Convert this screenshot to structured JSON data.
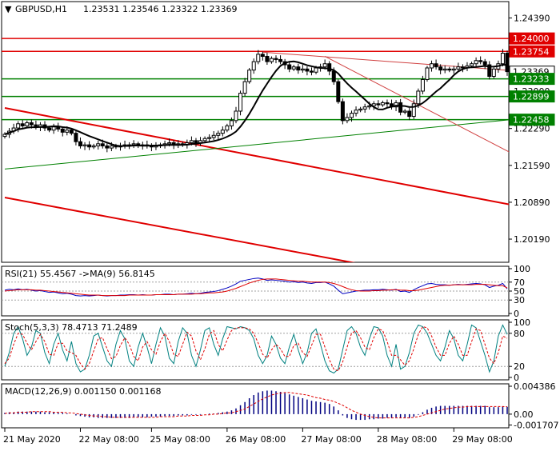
{
  "chart_data": [
    {
      "type": "candlestick",
      "panel": "price",
      "symbol_label": "GBPUSD,H1",
      "ohlc_label": "1.23531 1.23546 1.23322 1.23369",
      "ylim": [
        1.1975,
        1.247
      ],
      "y_ticks": [
        "1.24390",
        "1.23000",
        "1.22290",
        "1.21590",
        "1.20890",
        "1.20190"
      ],
      "levels": [
        {
          "value": 1.24,
          "label": "1.24000",
          "color": "#e00000",
          "style": "resistance"
        },
        {
          "value": 1.23754,
          "label": "1.23754",
          "color": "#e00000",
          "style": "resistance"
        },
        {
          "value": 1.23369,
          "label": "1.23369",
          "color": "#ffffff",
          "style": "current"
        },
        {
          "value": 1.23233,
          "label": "1.23233",
          "color": "#008000",
          "style": "support"
        },
        {
          "value": 1.22899,
          "label": "1.22899",
          "color": "#008000",
          "style": "support"
        },
        {
          "value": 1.22458,
          "label": "1.22458",
          "color": "#008000",
          "style": "support"
        }
      ],
      "trendlines": [
        {
          "x": [
            0.0,
            114.0
          ],
          "y": [
            1.2268,
            1.2084
          ],
          "color": "#e00000",
          "width": 2
        },
        {
          "x": [
            0.0,
            114.0
          ],
          "y": [
            1.2098,
            1.1918
          ],
          "color": "#e00000",
          "width": 2
        },
        {
          "x": [
            0.0,
            114.0
          ],
          "y": [
            1.2152,
            1.2246
          ],
          "color": "#008000",
          "width": 1
        },
        {
          "x": [
            58.0,
            114.0
          ],
          "y": [
            1.2374,
            1.2339
          ],
          "color": "#d04040",
          "width": 1
        },
        {
          "x": [
            72.0,
            114.0
          ],
          "y": [
            1.2366,
            1.2182
          ],
          "color": "#d04040",
          "width": 1
        }
      ],
      "closes": [
        1.2218,
        1.2224,
        1.223,
        1.2238,
        1.2234,
        1.224,
        1.2236,
        1.2232,
        1.2236,
        1.223,
        1.2226,
        1.2232,
        1.2228,
        1.2222,
        1.2226,
        1.222,
        1.2204,
        1.2196,
        1.2198,
        1.2194,
        1.2196,
        1.22,
        1.2196,
        1.2192,
        1.2196,
        1.2194,
        1.2196,
        1.2198,
        1.2198,
        1.22,
        1.2196,
        1.2198,
        1.2196,
        1.2194,
        1.2196,
        1.2198,
        1.22,
        1.2202,
        1.2198,
        1.22,
        1.2198,
        1.2202,
        1.2206,
        1.2202,
        1.2206,
        1.221,
        1.2212,
        1.2216,
        1.222,
        1.2226,
        1.2234,
        1.2244,
        1.2262,
        1.2296,
        1.2318,
        1.234,
        1.2356,
        1.237,
        1.2366,
        1.2356,
        1.2362,
        1.236,
        1.2356,
        1.235,
        1.2342,
        1.2346,
        1.234,
        1.2342,
        1.2338,
        1.2336,
        1.2344,
        1.2346,
        1.2352,
        1.2338,
        1.2318,
        1.228,
        1.2244,
        1.225,
        1.2258,
        1.2264,
        1.2266,
        1.227,
        1.2272,
        1.2276,
        1.2274,
        1.2278,
        1.2276,
        1.227,
        1.2278,
        1.226,
        1.2262,
        1.2252,
        1.2276,
        1.23,
        1.2322,
        1.2344,
        1.2352,
        1.2346,
        1.234,
        1.2342,
        1.234,
        1.2342,
        1.2346,
        1.2344,
        1.2348,
        1.2352,
        1.2358,
        1.2356,
        1.235,
        1.2328,
        1.2342,
        1.2352,
        1.2372,
        1.2337
      ],
      "x_labels": [
        "21 May 2020",
        "22 May 08:00",
        "25 May 08:00",
        "26 May 08:00",
        "27 May 08:00",
        "28 May 08:00",
        "29 May 08:00"
      ],
      "x_label_index": [
        0,
        17,
        33,
        50,
        67,
        84,
        101
      ]
    },
    {
      "type": "line",
      "panel": "rsi",
      "label": "RSI(21) 55.4567 ->MA(9) 56.8145",
      "ylim": [
        0,
        100
      ],
      "y_ticks": [
        "100",
        "70",
        "50",
        "30",
        "0"
      ],
      "levels": [
        70,
        50,
        30
      ],
      "series": [
        {
          "color": "#0000c0",
          "values": [
            52,
            54,
            53,
            55,
            53,
            54,
            52,
            50,
            51,
            49,
            47,
            48,
            46,
            44,
            45,
            43,
            40,
            39,
            40,
            39,
            40,
            41,
            40,
            39,
            40,
            40,
            41,
            41,
            42,
            42,
            41,
            42,
            41,
            41,
            42,
            42,
            43,
            43,
            42,
            43,
            43,
            44,
            45,
            44,
            45,
            47,
            48,
            49,
            51,
            54,
            57,
            61,
            66,
            72,
            74,
            76,
            78,
            79,
            77,
            74,
            75,
            74,
            73,
            72,
            70,
            71,
            69,
            70,
            68,
            67,
            69,
            69,
            70,
            66,
            61,
            52,
            44,
            46,
            48,
            50,
            51,
            52,
            52,
            53,
            53,
            54,
            53,
            52,
            54,
            49,
            50,
            47,
            53,
            58,
            62,
            66,
            67,
            65,
            64,
            64,
            63,
            64,
            65,
            64,
            65,
            66,
            67,
            66,
            64,
            58,
            61,
            63,
            67,
            55
          ]
        },
        {
          "color": "#e00000",
          "values": [
            50,
            51,
            52,
            53,
            53,
            53,
            53,
            52,
            52,
            51,
            50,
            49,
            48,
            47,
            46,
            45,
            44,
            43,
            42,
            41,
            41,
            41,
            40,
            40,
            40,
            40,
            40,
            40,
            41,
            41,
            41,
            41,
            41,
            41,
            42,
            42,
            42,
            42,
            42,
            43,
            43,
            43,
            43,
            44,
            44,
            45,
            46,
            46,
            47,
            48,
            50,
            53,
            56,
            60,
            64,
            68,
            71,
            74,
            76,
            77,
            77,
            77,
            76,
            75,
            74,
            73,
            72,
            72,
            71,
            70,
            70,
            70,
            70,
            69,
            67,
            64,
            60,
            56,
            53,
            51,
            50,
            50,
            50,
            51,
            51,
            52,
            52,
            53,
            53,
            52,
            52,
            51,
            51,
            52,
            54,
            56,
            58,
            60,
            62,
            63,
            63,
            64,
            64,
            64,
            64,
            64,
            65,
            65,
            65,
            64,
            63,
            62,
            62,
            57
          ]
        }
      ]
    },
    {
      "type": "line",
      "panel": "stochastic",
      "label": "Stoch(5,3,3) 78.4713 71.2489",
      "ylim": [
        0,
        100
      ],
      "y_ticks": [
        "100",
        "80",
        "20",
        "0"
      ],
      "levels": [
        80,
        20
      ],
      "series": [
        {
          "color": "#008080",
          "values": [
            20,
            45,
            80,
            92,
            70,
            40,
            55,
            85,
            80,
            45,
            25,
            60,
            80,
            50,
            30,
            65,
            25,
            10,
            15,
            40,
            75,
            80,
            55,
            30,
            20,
            60,
            85,
            70,
            30,
            20,
            55,
            80,
            55,
            25,
            60,
            90,
            75,
            35,
            25,
            65,
            90,
            80,
            40,
            20,
            50,
            85,
            90,
            60,
            40,
            70,
            92,
            90,
            88,
            92,
            90,
            85,
            70,
            40,
            25,
            40,
            75,
            60,
            35,
            25,
            55,
            78,
            50,
            25,
            45,
            80,
            88,
            60,
            30,
            12,
            8,
            15,
            50,
            85,
            92,
            80,
            55,
            40,
            70,
            92,
            90,
            75,
            40,
            20,
            60,
            15,
            20,
            45,
            80,
            95,
            92,
            80,
            60,
            40,
            30,
            55,
            85,
            70,
            40,
            30,
            60,
            95,
            90,
            65,
            40,
            10,
            30,
            75,
            95,
            78
          ]
        },
        {
          "color": "#e00000",
          "values": [
            25,
            35,
            60,
            80,
            78,
            62,
            50,
            65,
            78,
            65,
            42,
            40,
            62,
            62,
            48,
            45,
            40,
            25,
            15,
            25,
            48,
            70,
            72,
            52,
            34,
            38,
            58,
            72,
            60,
            38,
            30,
            55,
            65,
            50,
            42,
            65,
            80,
            65,
            42,
            38,
            60,
            82,
            75,
            48,
            32,
            52,
            78,
            85,
            60,
            48,
            68,
            85,
            90,
            90,
            90,
            88,
            80,
            62,
            42,
            35,
            50,
            60,
            52,
            38,
            38,
            58,
            62,
            45,
            38,
            58,
            78,
            78,
            55,
            32,
            15,
            12,
            28,
            55,
            80,
            85,
            72,
            55,
            50,
            72,
            88,
            85,
            65,
            40,
            40,
            32,
            22,
            30,
            52,
            78,
            92,
            90,
            75,
            55,
            40,
            40,
            62,
            75,
            60,
            40,
            40,
            65,
            88,
            85,
            60,
            35,
            25,
            45,
            75,
            71
          ]
        }
      ]
    },
    {
      "type": "bar",
      "panel": "macd",
      "label": "MACD(12,26,9) 0.001150 0.001168",
      "ylim": [
        -0.0017707,
        0.004386
      ],
      "y_ticks": [
        "0.004386",
        "0.00",
        "-0.001707"
      ],
      "signal_color": "#e00000",
      "histogram_color": "#000080",
      "histogram": [
        0.0002,
        0.0003,
        0.0003,
        0.0004,
        0.0004,
        0.0004,
        0.0004,
        0.0004,
        0.0004,
        0.0003,
        0.0003,
        0.0003,
        0.0002,
        0.0002,
        0.0001,
        0.0,
        -0.0002,
        -0.0003,
        -0.0004,
        -0.0005,
        -0.0005,
        -0.0006,
        -0.0006,
        -0.0006,
        -0.0006,
        -0.0006,
        -0.0006,
        -0.0006,
        -0.0006,
        -0.0005,
        -0.0005,
        -0.0005,
        -0.0005,
        -0.0004,
        -0.0004,
        -0.0004,
        -0.0003,
        -0.0003,
        -0.0003,
        -0.0002,
        -0.0002,
        -0.0002,
        -0.0001,
        -0.0001,
        -0.0001,
        0.0,
        0.0001,
        0.0001,
        0.0002,
        0.0003,
        0.0004,
        0.0006,
        0.0009,
        0.0014,
        0.0019,
        0.0025,
        0.003,
        0.0034,
        0.0036,
        0.0037,
        0.0037,
        0.0036,
        0.0035,
        0.0033,
        0.0031,
        0.0029,
        0.0027,
        0.0025,
        0.0023,
        0.0021,
        0.002,
        0.0019,
        0.0018,
        0.0016,
        0.0012,
        0.0006,
        -0.0002,
        -0.0006,
        -0.0008,
        -0.0009,
        -0.0009,
        -0.0009,
        -0.0008,
        -0.0008,
        -0.0007,
        -0.0007,
        -0.0006,
        -0.0006,
        -0.0005,
        -0.0006,
        -0.0006,
        -0.0006,
        -0.0004,
        -0.0001,
        0.0003,
        0.0007,
        0.001,
        0.0012,
        0.0013,
        0.0013,
        0.0013,
        0.0013,
        0.0013,
        0.0013,
        0.0013,
        0.0013,
        0.0013,
        0.0013,
        0.0013,
        0.0011,
        0.0011,
        0.0011,
        0.0012,
        0.00115
      ],
      "signal": [
        0.0001,
        0.0002,
        0.0002,
        0.0003,
        0.0003,
        0.0003,
        0.0004,
        0.0004,
        0.0004,
        0.0004,
        0.0004,
        0.0003,
        0.0003,
        0.0003,
        0.0002,
        0.0002,
        0.0001,
        0.0,
        -0.0001,
        -0.0002,
        -0.0003,
        -0.0003,
        -0.0004,
        -0.0004,
        -0.0005,
        -0.0005,
        -0.0005,
        -0.0005,
        -0.0005,
        -0.0005,
        -0.0005,
        -0.0005,
        -0.0005,
        -0.0005,
        -0.0005,
        -0.0004,
        -0.0004,
        -0.0004,
        -0.0004,
        -0.0003,
        -0.0003,
        -0.0003,
        -0.0002,
        -0.0002,
        -0.0002,
        -0.0001,
        -0.0001,
        0.0,
        0.0,
        0.0001,
        0.0002,
        0.0002,
        0.0004,
        0.0006,
        0.0008,
        0.0012,
        0.0016,
        0.002,
        0.0024,
        0.0027,
        0.003,
        0.0032,
        0.0033,
        0.0034,
        0.0034,
        0.0033,
        0.0032,
        0.0031,
        0.003,
        0.0028,
        0.0026,
        0.0025,
        0.0023,
        0.0022,
        0.002,
        0.0017,
        0.0014,
        0.001,
        0.0006,
        0.0003,
        0.0,
        -0.0002,
        -0.0004,
        -0.0005,
        -0.0006,
        -0.0006,
        -0.0006,
        -0.0006,
        -0.0006,
        -0.0006,
        -0.0006,
        -0.0006,
        -0.0005,
        -0.0004,
        -0.0002,
        0.0,
        0.0002,
        0.0004,
        0.0006,
        0.0008,
        0.0009,
        0.001,
        0.0011,
        0.0011,
        0.0012,
        0.0012,
        0.0012,
        0.0012,
        0.0012,
        0.0012,
        0.0012,
        0.0012,
        0.0012,
        0.001168
      ]
    }
  ]
}
